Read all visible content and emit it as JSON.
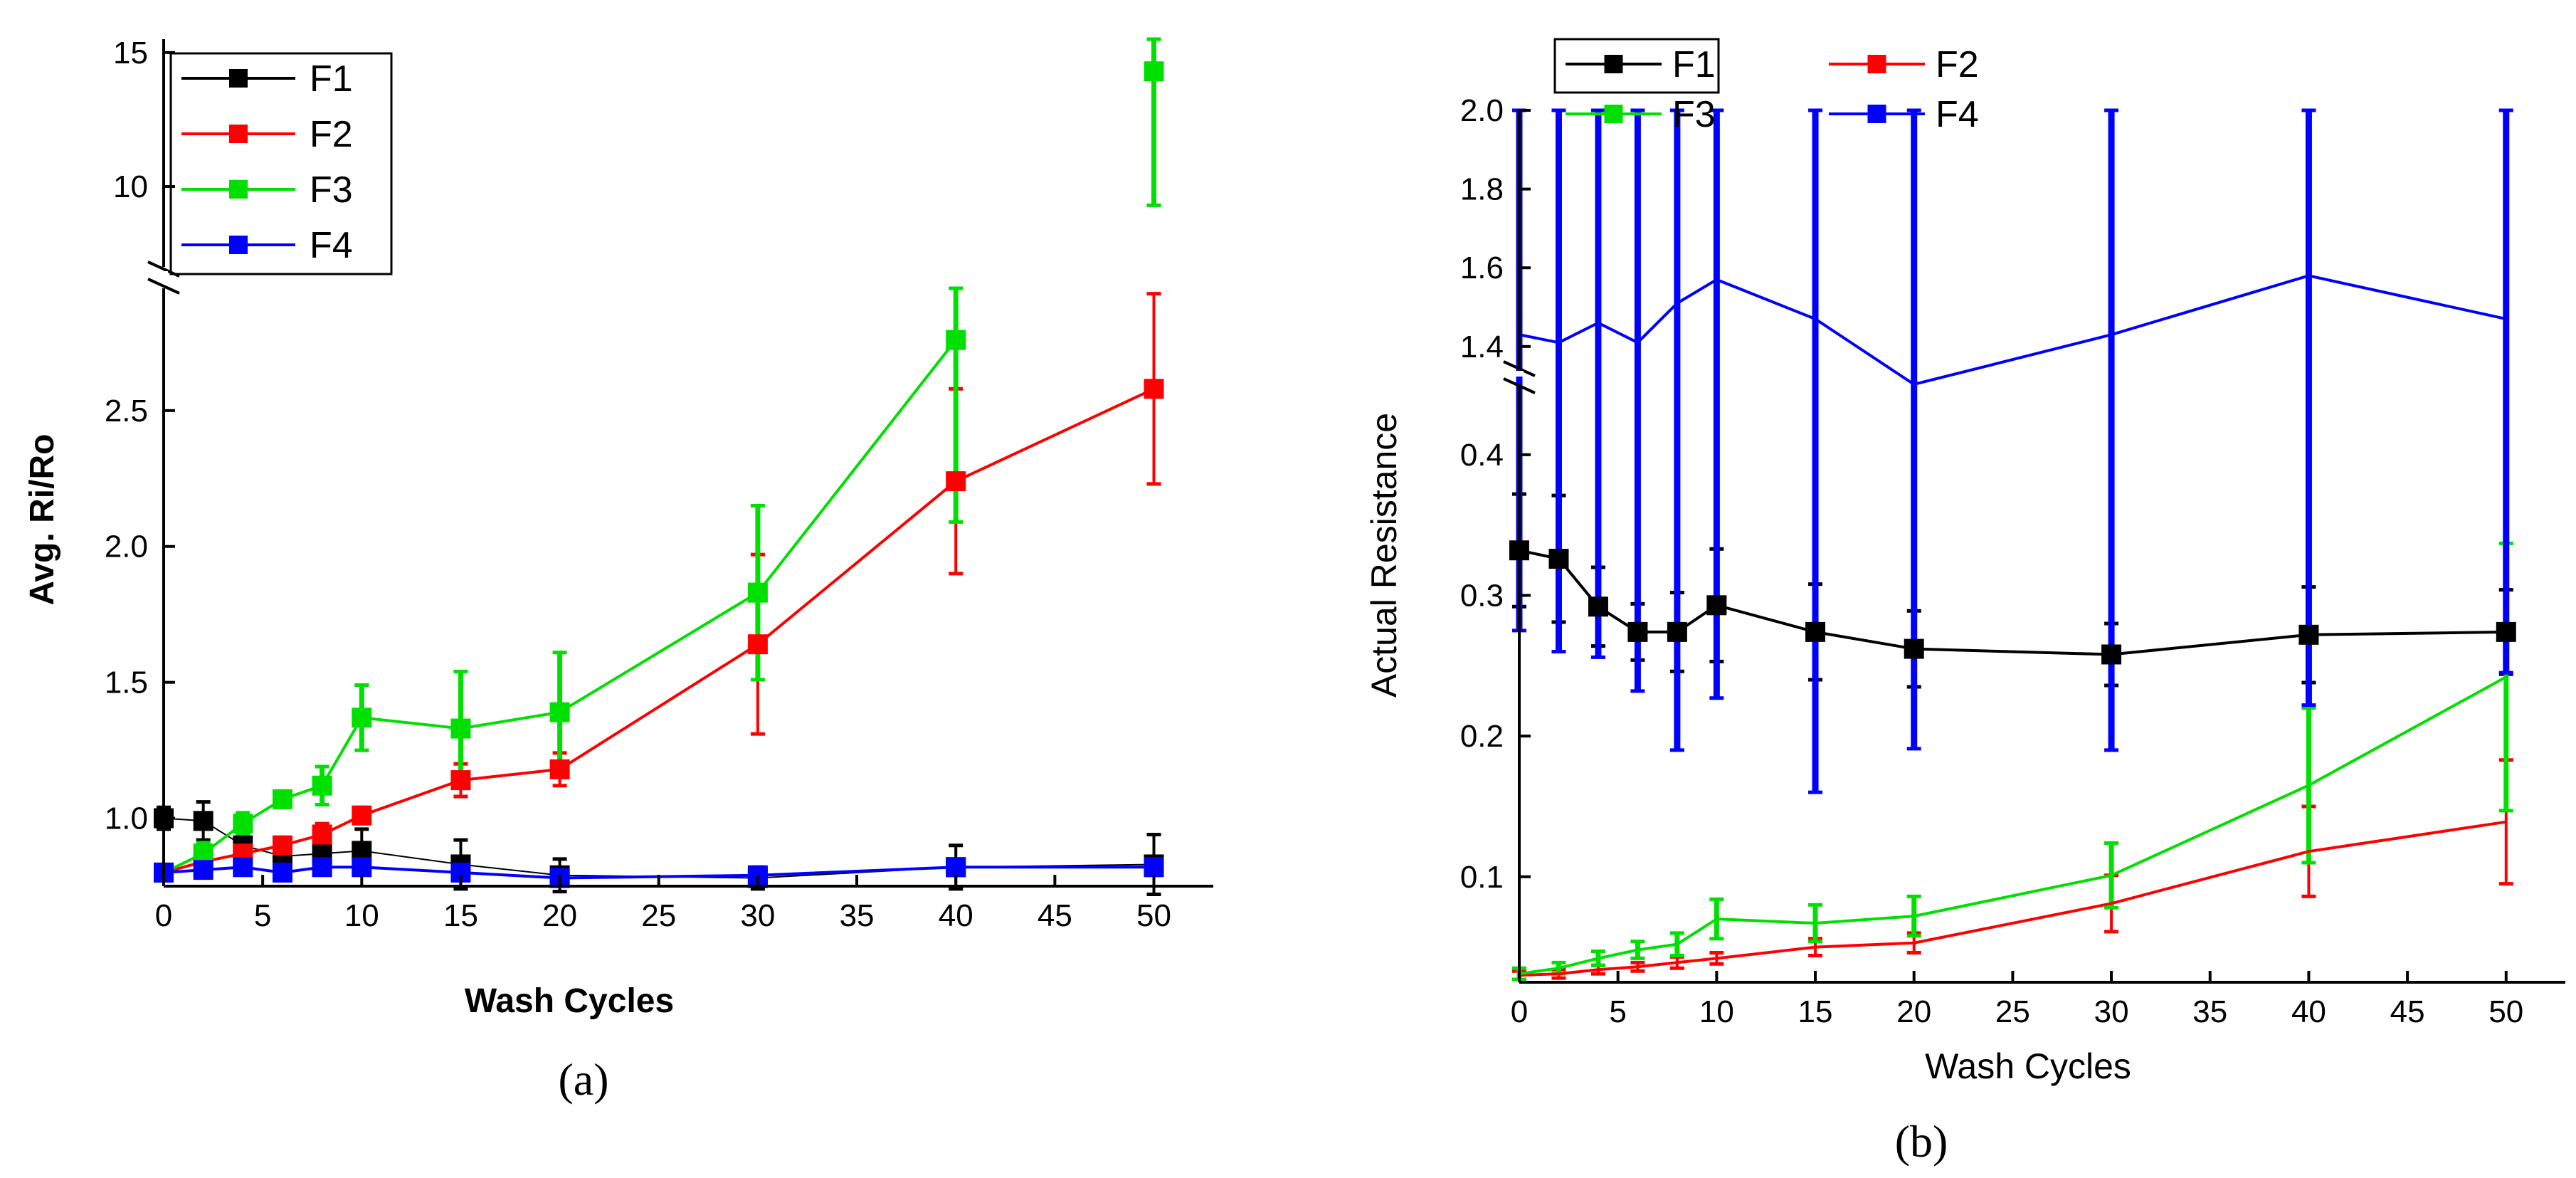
{
  "chart_data": [
    {
      "type": "line",
      "panel_label": "(a)",
      "xlabel": "Wash Cycles",
      "ylabel": "Avg. Ri/Ro",
      "xlim": [
        0,
        53
      ],
      "xticks": [
        0,
        5,
        10,
        15,
        20,
        25,
        30,
        35,
        40,
        45,
        50
      ],
      "x": [
        0,
        2,
        4,
        6,
        8,
        10,
        15,
        20,
        30,
        40,
        50
      ],
      "y_break": {
        "lower_range": [
          0.75,
          2.95
        ],
        "upper_range": [
          7,
          15.5
        ]
      },
      "yticks_lower": [
        "1.0",
        "1.5",
        "2.0",
        "2.5"
      ],
      "yticks_upper": [
        "10",
        "15"
      ],
      "grid": false,
      "legend_position": "top-left",
      "series": [
        {
          "name": "F1",
          "color": "#000000",
          "values": [
            1.0,
            0.99,
            0.9,
            0.86,
            0.87,
            0.88,
            0.83,
            0.79,
            0.78,
            0.82,
            0.83
          ],
          "error": [
            0.04,
            0.07,
            0.04,
            0.05,
            0.05,
            0.08,
            0.09,
            0.06,
            0.04,
            0.08,
            0.11
          ]
        },
        {
          "name": "F2",
          "color": "#ff0000",
          "values": [
            0.8,
            0.84,
            0.87,
            0.9,
            0.94,
            1.01,
            1.14,
            1.18,
            1.64,
            2.24,
            2.58
          ],
          "error": [
            0.02,
            0.03,
            0.03,
            0.03,
            0.04,
            0.03,
            0.06,
            0.06,
            0.33,
            0.34,
            0.35
          ]
        },
        {
          "name": "F3",
          "color": "#00e000",
          "values": [
            0.8,
            0.87,
            0.98,
            1.07,
            1.12,
            1.37,
            1.33,
            1.39,
            1.83,
            2.76,
            14.3
          ],
          "error": [
            0.02,
            0.04,
            0.04,
            0.03,
            0.07,
            0.12,
            0.21,
            0.22,
            0.32,
            0.67,
            5.0
          ]
        },
        {
          "name": "F4",
          "color": "#0000ff",
          "values": [
            0.8,
            0.81,
            0.82,
            0.8,
            0.82,
            0.82,
            0.8,
            0.78,
            0.79,
            0.82,
            0.82
          ],
          "error": [
            0.01,
            0.02,
            0.02,
            0.02,
            0.02,
            0.02,
            0.02,
            0.02,
            0.02,
            0.02,
            0.03
          ]
        }
      ]
    },
    {
      "type": "line",
      "panel_label": "(b)",
      "xlabel": "Wash Cycles",
      "ylabel": "Actual Resistance",
      "xlim": [
        0,
        53
      ],
      "xticks": [
        0,
        5,
        10,
        15,
        20,
        25,
        30,
        35,
        40,
        45,
        50
      ],
      "x": [
        0,
        2,
        4,
        6,
        8,
        10,
        15,
        20,
        30,
        40,
        50
      ],
      "y_break": {
        "lower_range": [
          0.025,
          0.45
        ],
        "upper_range": [
          1.34,
          2.0
        ]
      },
      "yticks_lower": [
        "0.1",
        "0.2",
        "0.3",
        "0.4"
      ],
      "yticks_upper": [
        "1.4",
        "1.6",
        "1.8",
        "2.0"
      ],
      "grid": false,
      "legend_position": "top-left",
      "series": [
        {
          "name": "F1",
          "color": "#000000",
          "values": [
            0.332,
            0.326,
            0.292,
            0.274,
            0.274,
            0.293,
            0.274,
            0.262,
            0.258,
            0.272,
            0.274
          ],
          "error": [
            0.04,
            0.045,
            0.028,
            0.02,
            0.028,
            0.04,
            0.034,
            0.027,
            0.022,
            0.034,
            0.03
          ]
        },
        {
          "name": "F2",
          "color": "#ff0000",
          "values": [
            0.03,
            0.031,
            0.034,
            0.036,
            0.039,
            0.042,
            0.05,
            0.053,
            0.081,
            0.118,
            0.139
          ],
          "error": [
            0.003,
            0.003,
            0.003,
            0.003,
            0.004,
            0.004,
            0.006,
            0.007,
            0.02,
            0.032,
            0.044
          ]
        },
        {
          "name": "F3",
          "color": "#00e000",
          "values": [
            0.031,
            0.035,
            0.042,
            0.048,
            0.052,
            0.07,
            0.067,
            0.072,
            0.101,
            0.165,
            0.242
          ],
          "error": [
            0.004,
            0.004,
            0.005,
            0.006,
            0.008,
            0.014,
            0.013,
            0.014,
            0.023,
            0.055,
            0.095
          ]
        },
        {
          "name": "F4",
          "color": "#0000ff",
          "values": [
            1.43,
            1.41,
            1.46,
            1.41,
            1.51,
            1.57,
            1.47,
            1.27,
            1.43,
            1.58,
            1.47
          ],
          "error_low_values": [
            0.275,
            0.26,
            0.256,
            0.232,
            0.19,
            0.227,
            0.16,
            0.191,
            0.19,
            0.222,
            0.245
          ],
          "error_high_clipped": true
        }
      ]
    }
  ]
}
